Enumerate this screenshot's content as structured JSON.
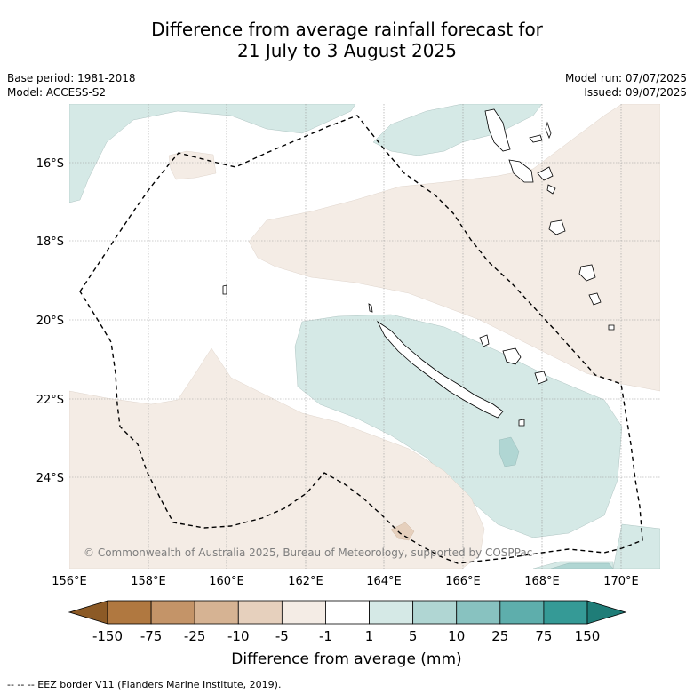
{
  "title_line1": "Difference from average rainfall forecast for",
  "title_line2": "21 July to 3 August 2025",
  "base_period": "Base period: 1981-2018",
  "model": "Model: ACCESS-S2",
  "model_run": "Model run: 07/07/2025",
  "issued": "Issued: 09/07/2025",
  "copyright": "© Commonwealth of Australia 2025, Bureau of Meteorology, supported by COSPPac",
  "footnote": "-- -- -- EEZ border V11 (Flanders Marine Institute, 2019).",
  "lat_ticks": [
    "16°S",
    "18°S",
    "20°S",
    "22°S",
    "24°S"
  ],
  "lon_ticks": [
    "156°E",
    "158°E",
    "160°E",
    "162°E",
    "164°E",
    "166°E",
    "168°E",
    "170°E"
  ],
  "colorbar": {
    "title": "Difference from average (mm)",
    "labels": [
      "-150",
      "-75",
      "-25",
      "-10",
      "-5",
      "-1",
      "1",
      "5",
      "10",
      "25",
      "75",
      "150"
    ],
    "colors": [
      "#8c5a26",
      "#b07840",
      "#c49468",
      "#d6b393",
      "#e6d0bd",
      "#f4ece5",
      "#ffffff",
      "#d5e9e6",
      "#b0d6d3",
      "#88c2c0",
      "#5eaeac",
      "#359a96",
      "#1f7d78"
    ]
  },
  "map_colors": {
    "wet_light": "#d5e9e6",
    "wet_medium": "#b0d6d3",
    "dry_light": "#f4ece5",
    "dry_medium": "#e6d0bd"
  }
}
